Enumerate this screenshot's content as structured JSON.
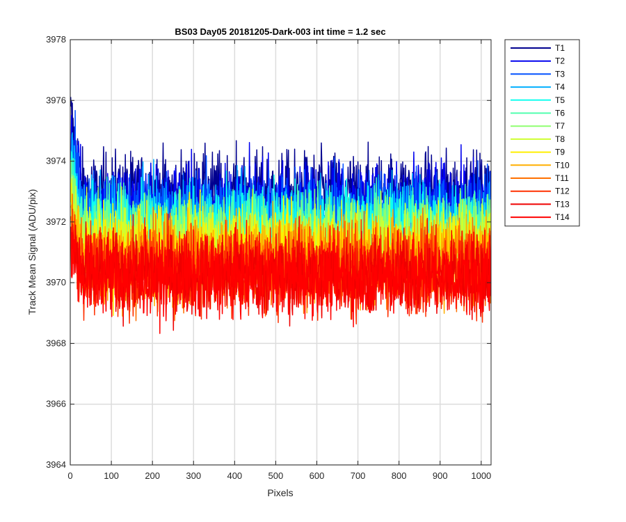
{
  "chart_data": {
    "type": "line",
    "title": "BS03 Day05 20181205-Dark-003 int time = 1.2 sec",
    "xlabel": "Pixels",
    "ylabel": "Track Mean Signal (ADU/pix)",
    "xlim": [
      0,
      1024
    ],
    "ylim": [
      3964,
      3978
    ],
    "xticks": [
      0,
      100,
      200,
      300,
      400,
      500,
      600,
      700,
      800,
      900,
      1000
    ],
    "yticks": [
      3964,
      3966,
      3968,
      3970,
      3972,
      3974,
      3976,
      3978
    ],
    "grid": true,
    "legend_position": "outside-right-top",
    "series": [
      {
        "name": "T1",
        "color": "#00008f",
        "mean": 3972.9,
        "noise": 1.0
      },
      {
        "name": "T2",
        "color": "#0000ef",
        "mean": 3972.6,
        "noise": 1.0
      },
      {
        "name": "T3",
        "color": "#0050ff",
        "mean": 3972.3,
        "noise": 1.0
      },
      {
        "name": "T4",
        "color": "#00afff",
        "mean": 3972.0,
        "noise": 1.0
      },
      {
        "name": "T5",
        "color": "#10ffef",
        "mean": 3971.8,
        "noise": 1.0
      },
      {
        "name": "T6",
        "color": "#50ffaf",
        "mean": 3971.6,
        "noise": 1.0
      },
      {
        "name": "T7",
        "color": "#8fff70",
        "mean": 3971.4,
        "noise": 1.0
      },
      {
        "name": "T8",
        "color": "#cfff30",
        "mean": 3971.2,
        "noise": 1.0
      },
      {
        "name": "T9",
        "color": "#ffef00",
        "mean": 3971.0,
        "noise": 1.0
      },
      {
        "name": "T10",
        "color": "#ffaf00",
        "mean": 3970.8,
        "noise": 1.0
      },
      {
        "name": "T11",
        "color": "#ff7000",
        "mean": 3970.6,
        "noise": 1.0
      },
      {
        "name": "T12",
        "color": "#ff3000",
        "mean": 3970.4,
        "noise": 1.0
      },
      {
        "name": "T13",
        "color": "#ef0000",
        "mean": 3970.3,
        "noise": 1.0
      },
      {
        "name": "T14",
        "color": "#ff0000",
        "mean": 3970.2,
        "noise": 0.9
      }
    ]
  }
}
